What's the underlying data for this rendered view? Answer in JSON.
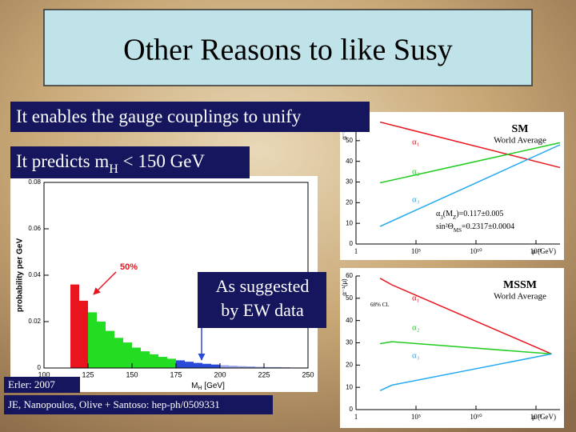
{
  "title": "Other Reasons to like Susy",
  "bullets": [
    [
      "It enables the gauge couplings to unify"
    ],
    [
      "It predicts m",
      "H",
      " < 150 GeV"
    ]
  ],
  "callout": [
    "As suggested",
    "by EW data"
  ],
  "credits": [
    "Erler: 2007",
    "JE, Nanopoulos, Olive + Santoso: hep-ph/0509331"
  ],
  "chart_data": [
    {
      "type": "histogram",
      "xlabel": [
        "M",
        "H",
        " [GeV]"
      ],
      "ylabel": "probability per GeV",
      "annotation": "50%",
      "bins": [
        115,
        120,
        125,
        130,
        135,
        140,
        145,
        150,
        155,
        160,
        165,
        170,
        175,
        180,
        185,
        190,
        195,
        200,
        205,
        210,
        215,
        220,
        225,
        230,
        235,
        240,
        245,
        250
      ],
      "values": [
        0.036,
        0.029,
        0.024,
        0.02,
        0.016,
        0.013,
        0.011,
        0.0088,
        0.0072,
        0.0059,
        0.0048,
        0.004,
        0.0033,
        0.0027,
        0.0022,
        0.0018,
        0.0015,
        0.0012,
        0.001,
        0.0008,
        0.0007,
        0.0005,
        0.0004,
        0.0004,
        0.0003,
        0.0002,
        0.0002
      ],
      "colors": [
        "#e8141e",
        "#e8141e",
        "#22dd22",
        "#22dd22",
        "#22dd22",
        "#22dd22",
        "#22dd22",
        "#22dd22",
        "#22dd22",
        "#22dd22",
        "#22dd22",
        "#22dd22",
        "#2a4bd8",
        "#2a4bd8",
        "#2a4bd8",
        "#2a4bd8",
        "#2a4bd8",
        "#9aa6e8",
        "#9aa6e8",
        "#9aa6e8",
        "#9aa6e8",
        "#9aa6e8",
        "#9aa6e8",
        "#9aa6e8",
        "#9aa6e8",
        "#9aa6e8",
        "#9aa6e8"
      ],
      "xlim": [
        100,
        250
      ],
      "xticks": [
        100,
        125,
        150,
        175,
        200,
        225,
        250
      ],
      "ylim": [
        0,
        0.08
      ],
      "yticks": [
        0,
        0.02,
        0.04,
        0.06,
        0.08
      ]
    },
    {
      "type": "line",
      "title": "SM",
      "subtitle": "World Average",
      "xlabel": "μ (GeV)",
      "ylabel": "α⁻¹(μ)",
      "annotations": [
        [
          "α",
          "3",
          "(M",
          "Z",
          ")=0.117±0.005"
        ],
        [
          "sin²Θ",
          "MS",
          "=0.2317±0.0004"
        ]
      ],
      "log_x": true,
      "x": [
        100,
        1e+17
      ],
      "series": [
        {
          "name": "α₁",
          "color": "#e8141e",
          "values": [
            59,
            37
          ]
        },
        {
          "name": "α₂",
          "color": "#22cc22",
          "values": [
            29.6,
            49
          ]
        },
        {
          "name": "α₃",
          "color": "#22aaee",
          "values": [
            8.5,
            48
          ]
        }
      ],
      "xlim": [
        1,
        1e+17
      ],
      "xticks": [
        1,
        {
          "value": 100000.0,
          "label": "10⁵"
        },
        {
          "value": 10000000000.0,
          "label": "10¹⁰"
        },
        {
          "value": 1000000000000000.0,
          "label": "10¹⁵"
        }
      ],
      "ylim": [
        0,
        60
      ],
      "yticks": [
        0,
        10,
        20,
        30,
        40,
        50,
        60
      ]
    },
    {
      "type": "line",
      "title": "MSSM",
      "subtitle": "World Average",
      "xlabel": "μ (GeV)",
      "ylabel": "α⁻¹(μ)",
      "annotations": [
        [
          "68%",
          "",
          " CL"
        ]
      ],
      "log_x": true,
      "x": [
        100,
        1000,
        2e+16
      ],
      "series": [
        {
          "name": "α₁",
          "color": "#e8141e",
          "values": [
            59,
            56,
            25
          ]
        },
        {
          "name": "α₂",
          "color": "#22cc22",
          "values": [
            29.6,
            30.5,
            25
          ]
        },
        {
          "name": "α₃",
          "color": "#22aaee",
          "values": [
            8.5,
            11,
            25
          ]
        }
      ],
      "xlim": [
        1,
        1e+17
      ],
      "xticks": [
        1,
        {
          "value": 100000.0,
          "label": "10⁵"
        },
        {
          "value": 10000000000.0,
          "label": "10¹⁰"
        },
        {
          "value": 1000000000000000.0,
          "label": "10¹⁵"
        }
      ],
      "ylim": [
        0,
        60
      ],
      "yticks": [
        0,
        10,
        20,
        30,
        40,
        50,
        60
      ]
    }
  ]
}
